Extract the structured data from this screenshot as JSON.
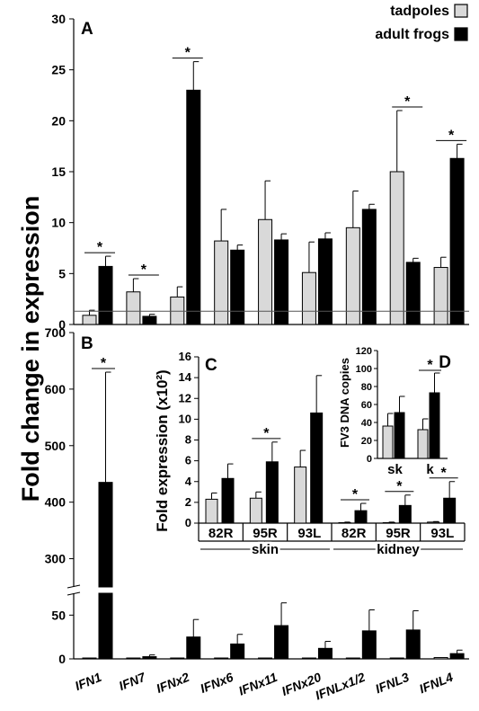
{
  "ylabel_main": "Fold change in expression",
  "legend": [
    {
      "label": "tadpoles",
      "color": "#d9d9d9"
    },
    {
      "label": "adult frogs",
      "color": "#000000"
    }
  ],
  "chart_data": [
    {
      "panel": "A",
      "type": "bar",
      "categories": [
        "IFN1",
        "IFN7",
        "IFNx2",
        "IFNx6",
        "IFNx11",
        "IFNx20",
        "IFNLx1/2",
        "IFNL3",
        "IFNL4"
      ],
      "series": [
        {
          "name": "tadpoles",
          "values": [
            0.9,
            3.2,
            2.7,
            8.2,
            10.3,
            5.1,
            9.5,
            15.0,
            5.6
          ],
          "errors": [
            0.5,
            1.3,
            1.0,
            3.1,
            3.8,
            3.0,
            3.6,
            6.0,
            1.0
          ]
        },
        {
          "name": "adult frogs",
          "values": [
            5.7,
            0.8,
            23.0,
            7.3,
            8.3,
            8.4,
            11.3,
            6.1,
            16.3
          ],
          "errors": [
            1.0,
            0.2,
            2.8,
            0.5,
            0.6,
            0.6,
            0.5,
            0.4,
            1.4
          ]
        }
      ],
      "significant": [
        0,
        1,
        2,
        7,
        8
      ],
      "reference_line": 1.3,
      "ylim": [
        0,
        30
      ],
      "yticks": [
        0,
        5,
        10,
        15,
        20,
        25,
        30
      ]
    },
    {
      "panel": "B",
      "type": "bar",
      "categories": [
        "IFN1",
        "IFN7",
        "IFNx2",
        "IFNx6",
        "IFNx11",
        "IFNx20",
        "IFNLx1/2",
        "IFNL3",
        "IFNL4"
      ],
      "series": [
        {
          "name": "tadpoles",
          "values": [
            1,
            1,
            1,
            1,
            1,
            1,
            1,
            1,
            1.5
          ],
          "errors": [
            0,
            0,
            0,
            0,
            0,
            0,
            0,
            0,
            0
          ]
        },
        {
          "name": "adult frogs",
          "values": [
            435,
            2.5,
            25,
            17,
            38,
            12,
            32,
            33,
            6
          ],
          "errors": [
            195,
            2,
            20,
            11,
            26,
            8,
            24,
            22,
            4
          ]
        }
      ],
      "significant": [
        0
      ],
      "broken_axis": {
        "lower": [
          0,
          75
        ],
        "upper": [
          250,
          700
        ]
      },
      "yticks_lower": [
        0,
        50
      ],
      "yticks_upper": [
        300,
        400,
        500,
        600,
        700
      ]
    },
    {
      "panel": "C",
      "type": "bar",
      "ylabel": "Fold expression (x10²)",
      "categories": [
        "82R",
        "95R",
        "93L",
        "82R",
        "95R",
        "93L"
      ],
      "groups": [
        {
          "label": "skin",
          "span": [
            0,
            2
          ]
        },
        {
          "label": "kidney",
          "span": [
            3,
            5
          ]
        }
      ],
      "series": [
        {
          "name": "tadpoles",
          "values": [
            2.3,
            2.4,
            5.4,
            0.05,
            0.05,
            0.1
          ],
          "errors": [
            0.6,
            0.6,
            1.6,
            0.05,
            0.05,
            0.05
          ]
        },
        {
          "name": "adult frogs",
          "values": [
            4.3,
            5.9,
            10.6,
            1.2,
            1.7,
            2.4
          ],
          "errors": [
            1.4,
            1.9,
            3.6,
            0.7,
            1.0,
            1.6
          ]
        }
      ],
      "significant": [
        1,
        3,
        4,
        5
      ],
      "ylim": [
        0,
        16
      ],
      "yticks": [
        0,
        2,
        4,
        6,
        8,
        10,
        12,
        14,
        16
      ]
    },
    {
      "panel": "D",
      "type": "bar",
      "ylabel": "FV3 DNA copies",
      "categories": [
        "sk",
        "k"
      ],
      "series": [
        {
          "name": "tadpoles",
          "values": [
            36,
            32
          ],
          "errors": [
            14,
            12
          ]
        },
        {
          "name": "adult frogs",
          "values": [
            51,
            73
          ],
          "errors": [
            18,
            22
          ]
        }
      ],
      "significant": [
        1
      ],
      "ylim": [
        0,
        120
      ],
      "yticks": [
        0,
        20,
        40,
        60,
        80,
        100,
        120
      ]
    }
  ]
}
